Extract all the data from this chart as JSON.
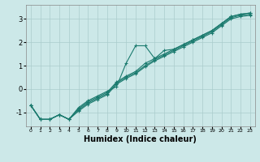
{
  "title": "",
  "xlabel": "Humidex (Indice chaleur)",
  "ylabel": "",
  "bg_color": "#cce8e8",
  "line_color": "#1a7a6e",
  "grid_color": "#aacccc",
  "xlim": [
    -0.5,
    23.5
  ],
  "ylim": [
    -1.6,
    3.6
  ],
  "xticks": [
    0,
    1,
    2,
    3,
    4,
    5,
    6,
    7,
    8,
    9,
    10,
    11,
    12,
    13,
    14,
    15,
    16,
    17,
    18,
    19,
    20,
    21,
    22,
    23
  ],
  "yticks": [
    -1,
    0,
    1,
    2,
    3
  ],
  "lines": [
    {
      "x": [
        0,
        1,
        2,
        3,
        4,
        5,
        6,
        7,
        8,
        9,
        10,
        11,
        12,
        13,
        14,
        15,
        16,
        17,
        18,
        19,
        20,
        21,
        22,
        23
      ],
      "y": [
        -0.7,
        -1.3,
        -1.3,
        -1.1,
        -1.3,
        -0.8,
        -0.5,
        -0.3,
        -0.1,
        0.1,
        1.1,
        1.85,
        1.85,
        1.3,
        1.65,
        1.7,
        1.9,
        2.1,
        2.3,
        2.5,
        2.8,
        3.1,
        3.2,
        3.25
      ]
    },
    {
      "x": [
        0,
        1,
        2,
        3,
        4,
        5,
        6,
        7,
        8,
        9,
        10,
        11,
        12,
        13,
        14,
        15,
        16,
        17,
        18,
        19,
        20,
        21,
        22,
        23
      ],
      "y": [
        -0.7,
        -1.3,
        -1.3,
        -1.1,
        -1.3,
        -0.85,
        -0.55,
        -0.35,
        -0.15,
        0.3,
        0.55,
        0.75,
        1.1,
        1.3,
        1.5,
        1.7,
        1.9,
        2.1,
        2.3,
        2.5,
        2.8,
        3.1,
        3.2,
        3.25
      ]
    },
    {
      "x": [
        0,
        1,
        2,
        3,
        4,
        5,
        6,
        7,
        8,
        9,
        10,
        11,
        12,
        13,
        14,
        15,
        16,
        17,
        18,
        19,
        20,
        21,
        22,
        23
      ],
      "y": [
        -0.7,
        -1.3,
        -1.3,
        -1.1,
        -1.3,
        -0.9,
        -0.6,
        -0.4,
        -0.2,
        0.25,
        0.5,
        0.7,
        1.0,
        1.25,
        1.45,
        1.65,
        1.85,
        2.05,
        2.25,
        2.45,
        2.75,
        3.05,
        3.15,
        3.2
      ]
    },
    {
      "x": [
        0,
        1,
        2,
        3,
        4,
        5,
        6,
        7,
        8,
        9,
        10,
        11,
        12,
        13,
        14,
        15,
        16,
        17,
        18,
        19,
        20,
        21,
        22,
        23
      ],
      "y": [
        -0.7,
        -1.3,
        -1.3,
        -1.1,
        -1.3,
        -0.95,
        -0.65,
        -0.45,
        -0.25,
        0.2,
        0.45,
        0.65,
        0.95,
        1.2,
        1.4,
        1.6,
        1.8,
        2.0,
        2.2,
        2.4,
        2.7,
        3.0,
        3.1,
        3.15
      ]
    }
  ]
}
